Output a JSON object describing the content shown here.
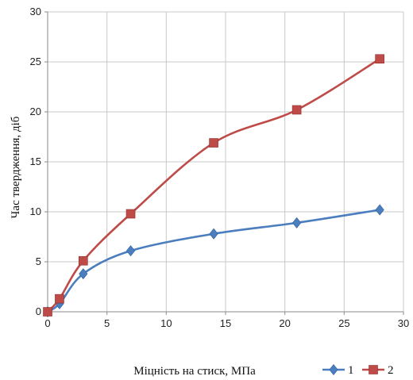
{
  "chart_data": {
    "type": "line",
    "xlabel": "Міцність на стиск, МПа",
    "ylabel": "Час твердження, діб",
    "xlim": [
      0,
      30
    ],
    "ylim": [
      0,
      30
    ],
    "xticks": [
      0,
      5,
      10,
      15,
      20,
      25,
      30
    ],
    "yticks": [
      0,
      5,
      10,
      15,
      20,
      25,
      30
    ],
    "grid": true,
    "legend_position": "bottom-right",
    "series": [
      {
        "name": "1",
        "color": "#4a7ebf",
        "marker": "diamond",
        "x": [
          0,
          1,
          3,
          7,
          14,
          21,
          28
        ],
        "values": [
          0,
          0.8,
          3.8,
          6.1,
          7.8,
          8.9,
          10.2
        ]
      },
      {
        "name": "2",
        "color": "#be4b48",
        "marker": "square",
        "x": [
          0,
          1,
          3,
          7,
          14,
          21,
          28
        ],
        "values": [
          0,
          1.3,
          5.1,
          9.8,
          16.9,
          20.2,
          25.3
        ]
      }
    ]
  }
}
